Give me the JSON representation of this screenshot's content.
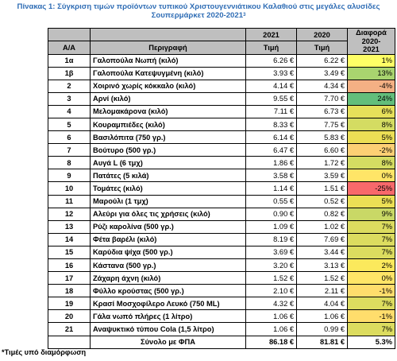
{
  "caption": {
    "line1": "Πίνακας 1: Σύγκριση τιμών προϊόντων τυπικού Χριστουγεννιάτικου Καλαθιού στις μεγάλες αλυσίδες",
    "line2": "Σουπερμάρκετ 2020-2021",
    "superscript": "3"
  },
  "header": {
    "aa": "Α/Α",
    "description": "Περιγραφή",
    "year2021": "2021",
    "year2020": "2020",
    "price2021": "Τιμή",
    "price2020": "Τιμή",
    "diff_line1": "Διαφορά",
    "diff_line2": "2020-",
    "diff_line3": "2021"
  },
  "rows": [
    {
      "aa": "1α",
      "desc": "Γαλοπούλα Νωπή (κιλό)",
      "p2021": "6.26 €",
      "p2020": "6.22 €",
      "diff": "1%",
      "color": "#ffff66"
    },
    {
      "aa": "1β",
      "desc": "Γαλοπούλα Κατεψυγμένη (κιλό)",
      "p2021": "3.93 €",
      "p2020": "3.49 €",
      "diff": "13%",
      "color": "#a9d46f"
    },
    {
      "aa": "2",
      "desc": "Χοιρινό χωρίς κόκκαλο (κιλό)",
      "p2021": "4.14 €",
      "p2020": "4.34 €",
      "diff": "-4%",
      "color": "#f4b084"
    },
    {
      "aa": "3",
      "desc": "Αρνί (κιλό)",
      "p2021": "9.55 €",
      "p2020": "7.70 €",
      "diff": "24%",
      "color": "#63be7b"
    },
    {
      "aa": "4",
      "desc": "Μελομακάρονα (κιλό)",
      "p2021": "7.11 €",
      "p2020": "6.73 €",
      "diff": "6%",
      "color": "#e6e05a"
    },
    {
      "aa": "5",
      "desc": "Κουραμπιέδες (κιλό)",
      "p2021": "8.33 €",
      "p2020": "7.75 €",
      "diff": "8%",
      "color": "#d4dc62"
    },
    {
      "aa": "6",
      "desc": "Βασιλόπιτα (750 γρ.)",
      "p2021": "6.14 €",
      "p2020": "5.83 €",
      "diff": "5%",
      "color": "#ecdf55"
    },
    {
      "aa": "7",
      "desc": "Βούτυρο (500 γρ.)",
      "p2021": "6.47 €",
      "p2020": "6.60 €",
      "diff": "-2%",
      "color": "#fdd074"
    },
    {
      "aa": "8",
      "desc": "Αυγά L (6 τμχ)",
      "p2021": "1.86 €",
      "p2020": "1.72 €",
      "diff": "8%",
      "color": "#d4dc62"
    },
    {
      "aa": "9",
      "desc": "Πατάτες (5 κιλά)",
      "p2021": "3.58 €",
      "p2020": "3.59 €",
      "diff": "0%",
      "color": "#ffe567"
    },
    {
      "aa": "10",
      "desc": "Τομάτες (κιλό)",
      "p2021": "1.14 €",
      "p2020": "1.51 €",
      "diff": "-25%",
      "color": "#f8696b"
    },
    {
      "aa": "11",
      "desc": "Μαρούλι (1 τμχ)",
      "p2021": "0.55 €",
      "p2020": "0.52 €",
      "diff": "5%",
      "color": "#ecdf55"
    },
    {
      "aa": "12",
      "desc": "Αλεύρι για όλες τις χρήσεις (κιλό)",
      "p2021": "0.90 €",
      "p2020": "0.82 €",
      "diff": "9%",
      "color": "#c9d866"
    },
    {
      "aa": "13",
      "desc": "Ρύζι καρολίνα (500 γρ.)",
      "p2021": "1.09 €",
      "p2020": "1.02 €",
      "diff": "7%",
      "color": "#dcdc5f"
    },
    {
      "aa": "14",
      "desc": "Φέτα βαρέλι (κιλό)",
      "p2021": "8.19 €",
      "p2020": "7.69 €",
      "diff": "7%",
      "color": "#dcdc5f"
    },
    {
      "aa": "15",
      "desc": "Καρύδια ψίχα (500 γρ.)",
      "p2021": "3.69 €",
      "p2020": "3.44 €",
      "diff": "7%",
      "color": "#dcdc5f"
    },
    {
      "aa": "16",
      "desc": "Κάστανα (500 γρ.)",
      "p2021": "3.20 €",
      "p2020": "3.13 €",
      "diff": "2%",
      "color": "#fbe95c"
    },
    {
      "aa": "17",
      "desc": "Ζάχαρη άχνη (κιλό)",
      "p2021": "1.52 €",
      "p2020": "1.52 €",
      "diff": "0%",
      "color": "#ffe567"
    },
    {
      "aa": "18",
      "desc": "Φύλλο κρούστας (500 γρ.)",
      "p2021": "2.10 €",
      "p2020": "2.11 €",
      "diff": "-1%",
      "color": "#ffdd6c"
    },
    {
      "aa": "19",
      "desc": "Κρασί Μοσχοφίλερο Λευκό (750 ML)",
      "p2021": "4.32 €",
      "p2020": "4.04 €",
      "diff": "7%",
      "color": "#dcdc5f"
    },
    {
      "aa": "20",
      "desc": "Γάλα νωπό πλήρες (1 λίτρο)",
      "p2021": "1.06 €",
      "p2020": "1.06 €",
      "diff": "-1%",
      "color": "#ffdd6c"
    },
    {
      "aa": "21",
      "desc": "Αναψυκτικό τύπου Cola (1,5 λίτρο)",
      "p2021": "1.06 €",
      "p2020": "0.99 €",
      "diff": "7%",
      "color": "#dcdc5f"
    }
  ],
  "total": {
    "label": "Σύνολο με ΦΠΑ",
    "p2021": "86.18 €",
    "p2020": "81.81 €",
    "diff": "5.3%"
  },
  "footnote": "*Τιμές υπό διαμόρφωση"
}
